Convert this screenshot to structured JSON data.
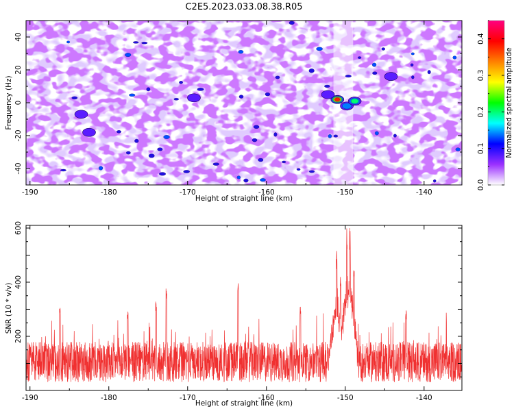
{
  "title": "C2E5.2023.033.08.38.R05",
  "chart_data": [
    {
      "type": "heatmap",
      "title": "C2E5.2023.033.08.38.R05",
      "xlabel": "Height of straight line (km)",
      "ylabel": "Frequency (Hz)",
      "xlim": [
        -190.5,
        -135.2
      ],
      "ylim": [
        -50,
        50
      ],
      "x_ticks": [
        -190,
        -180,
        -170,
        -160,
        -150,
        -140
      ],
      "y_ticks": [
        -40,
        -20,
        0,
        20,
        40
      ],
      "colorbar": {
        "label": "Normalized spectral amplitude",
        "range": [
          0.0,
          0.45
        ],
        "ticks": [
          "0.0",
          "0.1",
          "0.2",
          "0.3",
          "0.4"
        ],
        "colors": [
          "#ffffff",
          "#9b30ff",
          "#0000ff",
          "#00ffff",
          "#00ff00",
          "#ffff00",
          "#ff8000",
          "#ff0000",
          "#ff0080"
        ]
      },
      "background_level": 0.07,
      "quiet_band_x": [
        -151.5,
        -149
      ],
      "hotspots": [
        {
          "x": -151.0,
          "y": 2,
          "value": 0.38
        },
        {
          "x": -149.8,
          "y": -2,
          "value": 0.18
        },
        {
          "x": -148.8,
          "y": 1,
          "value": 0.22
        },
        {
          "x": -152.2,
          "y": 5,
          "value": 0.12
        },
        {
          "x": -144.2,
          "y": 16,
          "value": 0.1
        },
        {
          "x": -169.2,
          "y": 3,
          "value": 0.1
        },
        {
          "x": -182.5,
          "y": -18,
          "value": 0.09
        },
        {
          "x": -183.5,
          "y": -7,
          "value": 0.09
        }
      ]
    },
    {
      "type": "line",
      "xlabel": "Height of straight line (km)",
      "ylabel": "SNR (10 * v/v)",
      "xlim": [
        -190.5,
        -135.2
      ],
      "ylim": [
        0,
        610
      ],
      "x_ticks": [
        -190,
        -180,
        -170,
        -160,
        -150,
        -140
      ],
      "y_ticks": [
        200,
        400,
        600
      ],
      "series_color": "#f03030",
      "baseline": 105,
      "noise_range": [
        0,
        300
      ],
      "peaks": [
        {
          "x": -149.8,
          "y": 610
        },
        {
          "x": -149.4,
          "y": 600
        },
        {
          "x": -151.1,
          "y": 520
        },
        {
          "x": -150.6,
          "y": 430
        },
        {
          "x": -148.9,
          "y": 445
        },
        {
          "x": -163.6,
          "y": 420
        },
        {
          "x": -172.7,
          "y": 395
        },
        {
          "x": -174.0,
          "y": 345
        },
        {
          "x": -186.2,
          "y": 325
        },
        {
          "x": -142.3,
          "y": 300
        },
        {
          "x": -177.6,
          "y": 300
        },
        {
          "x": -155.7,
          "y": 310
        }
      ]
    }
  ]
}
